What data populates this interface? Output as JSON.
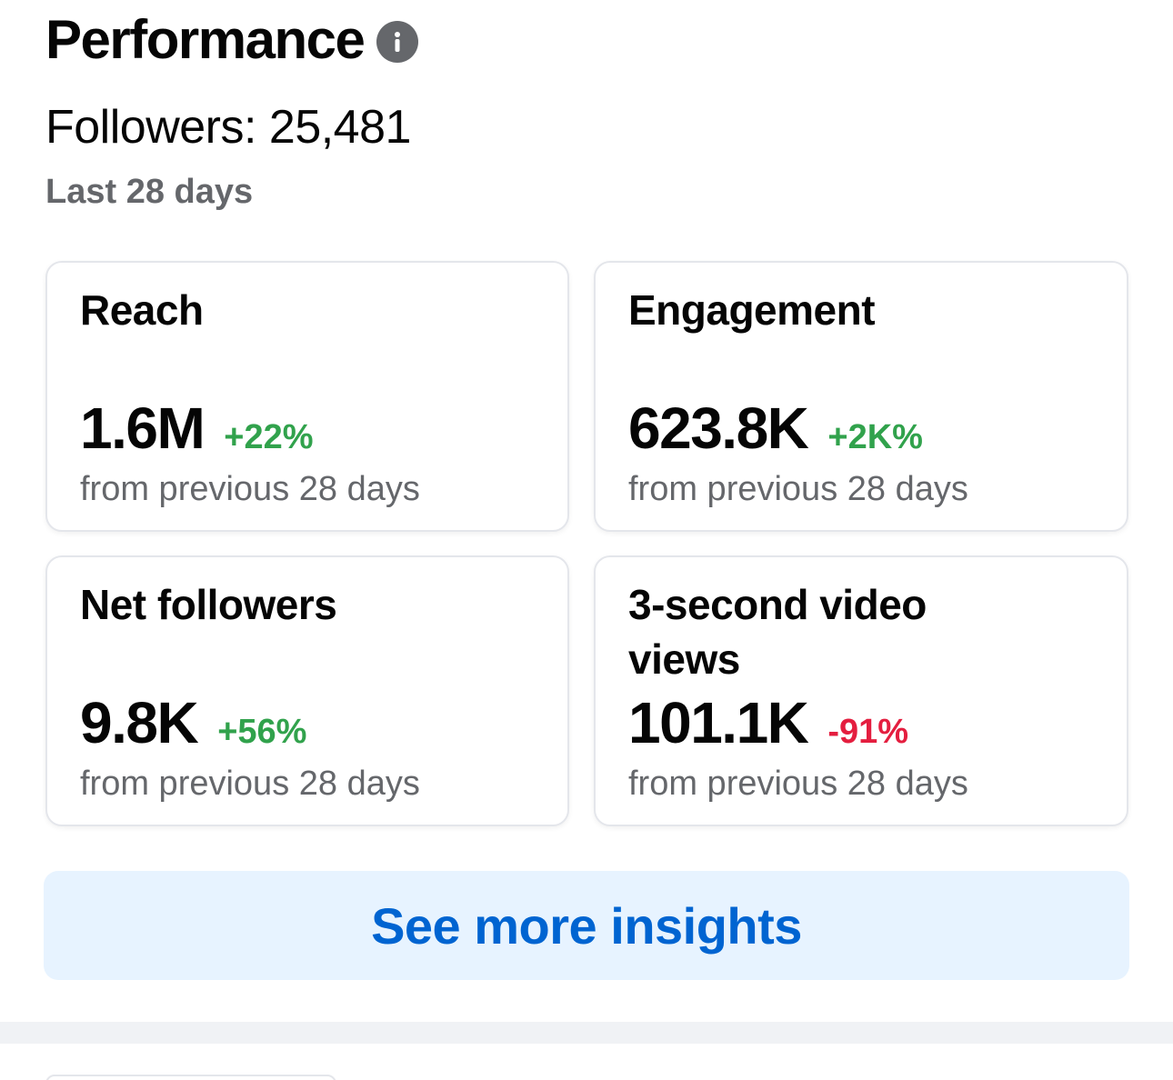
{
  "header": {
    "title": "Performance",
    "info_icon": "info-icon",
    "followers_text": "Followers: 25,481",
    "period_text": "Last 28 days"
  },
  "metrics": [
    {
      "title": "Reach",
      "value": "1.6M",
      "delta": "+22%",
      "delta_direction": "up",
      "subtitle": "from previous 28 days"
    },
    {
      "title": "Engagement",
      "value": "623.8K",
      "delta": "+2K%",
      "delta_direction": "up",
      "subtitle": "from previous 28 days"
    },
    {
      "title": "Net followers",
      "value": "9.8K",
      "delta": "+56%",
      "delta_direction": "up",
      "subtitle": "from previous 28 days"
    },
    {
      "title": "3-second video views",
      "value": "101.1K",
      "delta": "-91%",
      "delta_direction": "down",
      "subtitle": "from previous 28 days"
    }
  ],
  "cta": {
    "label": "See more insights"
  },
  "colors": {
    "positive": "#31a24c",
    "negative": "#e41e3f",
    "accent": "#0064d1",
    "accent_bg": "#e7f3ff",
    "secondary_text": "#65676b"
  }
}
